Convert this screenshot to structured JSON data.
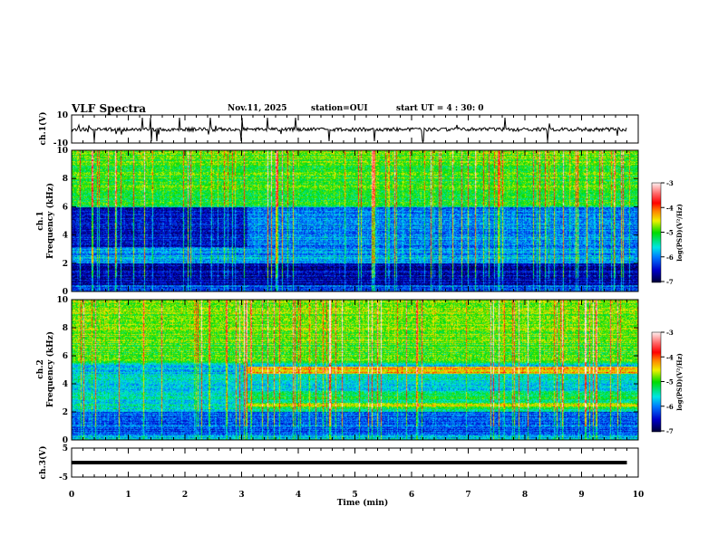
{
  "header": {
    "title": "VLF Spectra",
    "date": "Nov.11, 2025",
    "station": "station=OUI",
    "start": "start  UT =   4 : 30: 0"
  },
  "chart_data": [
    {
      "type": "line",
      "name": "ch1-waveform",
      "ylabel": "ch.1(V)",
      "ylim": [
        -10,
        10
      ],
      "yticks": [
        "10",
        "-10"
      ],
      "xlim": [
        0,
        10
      ],
      "baseline": 0,
      "spike_times_min": [
        0.4,
        1.25,
        1.4,
        1.5,
        1.9,
        2.45,
        3.0,
        3.45,
        3.95,
        4.55,
        5.35,
        6.2,
        7.65,
        8.4
      ],
      "color": "#000000"
    },
    {
      "type": "heatmap",
      "name": "ch1-spectrogram",
      "ylabel": "ch.1\nFrequency (kHz)",
      "ylabel_lines": [
        "ch.1",
        "Frequency (kHz)"
      ],
      "ylim": [
        0,
        10
      ],
      "yticks": [
        "0",
        "2",
        "4",
        "6",
        "8",
        "10"
      ],
      "xlim": [
        0,
        10
      ],
      "features": {
        "low_band_khz": [
          0,
          2
        ],
        "mid_band_khz": [
          2,
          3.2
        ],
        "enhanced_after_min": 3.1,
        "high_band_khz": [
          6,
          10
        ]
      }
    },
    {
      "type": "heatmap",
      "name": "ch2-spectrogram",
      "ylabel_lines": [
        "ch.2",
        "Frequency (kHz)"
      ],
      "ylim": [
        0,
        10
      ],
      "yticks": [
        "0",
        "2",
        "4",
        "6",
        "8",
        "10"
      ],
      "xlim": [
        0,
        10
      ],
      "features": {
        "emission_lines_khz": [
          5.0,
          2.5
        ],
        "emission_start_min": 3.1
      }
    },
    {
      "type": "line",
      "name": "ch3-waveform",
      "ylabel": "ch.3(V)",
      "ylim": [
        -5,
        5
      ],
      "yticks": [
        "5",
        "-5"
      ],
      "xlim": [
        0,
        10
      ],
      "xend": 9.8,
      "value": 0
    }
  ],
  "xaxis": {
    "label": "Time  (min)",
    "ticks": [
      "0",
      "1",
      "2",
      "3",
      "4",
      "5",
      "6",
      "7",
      "8",
      "9",
      "10"
    ]
  },
  "colorbar": {
    "label": "log(PSD)(V²/Hz)",
    "ticks": [
      "-3",
      "-4",
      "-5",
      "-6",
      "-7"
    ],
    "range": [
      -7,
      -3
    ]
  }
}
